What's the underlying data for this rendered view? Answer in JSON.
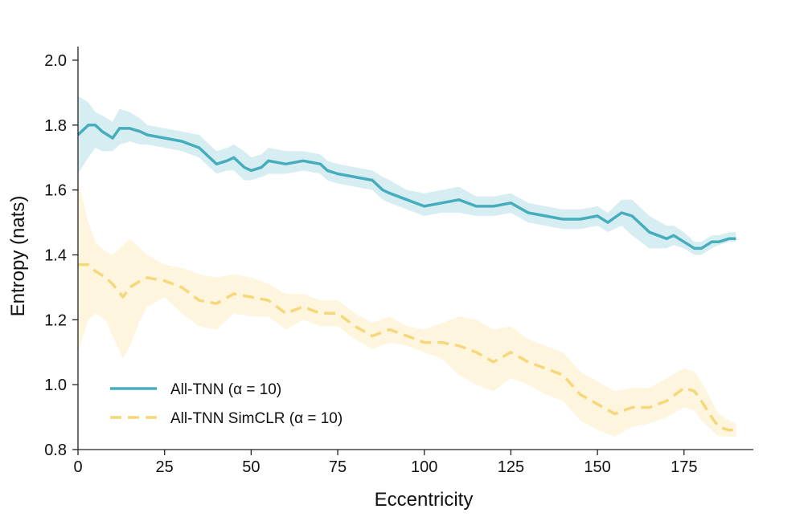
{
  "chart_data": {
    "type": "line",
    "xlabel": "Eccentricity",
    "ylabel": "Entropy (nats)",
    "xlim": [
      0,
      195
    ],
    "ylim": [
      0.8,
      2.05
    ],
    "x_ticks": [
      0,
      25,
      50,
      75,
      100,
      125,
      150,
      175
    ],
    "y_ticks": [
      0.8,
      1.0,
      1.2,
      1.4,
      1.6,
      1.8,
      2.0
    ],
    "x_tick_labels": [
      "0",
      "25",
      "50",
      "75",
      "100",
      "125",
      "150",
      "175"
    ],
    "y_tick_labels": [
      "0.8",
      "1.0",
      "1.2",
      "1.4",
      "1.6",
      "1.8",
      "2.0"
    ],
    "grid": false,
    "legend_position": "lower-left",
    "series": [
      {
        "name": "All-TNN (α = 10)",
        "color": "#45adbd",
        "band_color": "#45adbd",
        "style": "solid",
        "x": [
          0,
          3,
          5,
          7,
          10,
          12,
          15,
          18,
          20,
          25,
          30,
          35,
          40,
          43,
          45,
          48,
          50,
          53,
          55,
          60,
          65,
          70,
          72,
          75,
          80,
          85,
          88,
          90,
          95,
          100,
          105,
          110,
          115,
          120,
          125,
          130,
          135,
          140,
          145,
          150,
          153,
          157,
          160,
          165,
          170,
          172,
          175,
          178,
          180,
          183,
          185,
          188,
          190
        ],
        "y": [
          1.77,
          1.8,
          1.8,
          1.78,
          1.76,
          1.79,
          1.79,
          1.78,
          1.77,
          1.76,
          1.75,
          1.73,
          1.68,
          1.69,
          1.7,
          1.67,
          1.66,
          1.67,
          1.69,
          1.68,
          1.69,
          1.68,
          1.66,
          1.65,
          1.64,
          1.63,
          1.6,
          1.59,
          1.57,
          1.55,
          1.56,
          1.57,
          1.55,
          1.55,
          1.56,
          1.53,
          1.52,
          1.51,
          1.51,
          1.52,
          1.5,
          1.53,
          1.52,
          1.47,
          1.45,
          1.46,
          1.44,
          1.42,
          1.42,
          1.44,
          1.44,
          1.45,
          1.45
        ],
        "lower": [
          1.65,
          1.7,
          1.73,
          1.72,
          1.72,
          1.74,
          1.75,
          1.74,
          1.74,
          1.73,
          1.72,
          1.7,
          1.65,
          1.66,
          1.66,
          1.63,
          1.63,
          1.64,
          1.65,
          1.65,
          1.66,
          1.65,
          1.63,
          1.62,
          1.61,
          1.6,
          1.57,
          1.56,
          1.54,
          1.52,
          1.53,
          1.53,
          1.52,
          1.52,
          1.53,
          1.5,
          1.49,
          1.48,
          1.48,
          1.49,
          1.47,
          1.49,
          1.46,
          1.42,
          1.42,
          1.43,
          1.42,
          1.4,
          1.4,
          1.42,
          1.43,
          1.44,
          1.44
        ],
        "upper": [
          1.89,
          1.87,
          1.84,
          1.83,
          1.81,
          1.85,
          1.84,
          1.82,
          1.8,
          1.79,
          1.78,
          1.77,
          1.72,
          1.73,
          1.74,
          1.72,
          1.7,
          1.71,
          1.73,
          1.72,
          1.72,
          1.71,
          1.69,
          1.68,
          1.67,
          1.66,
          1.64,
          1.63,
          1.6,
          1.59,
          1.6,
          1.61,
          1.58,
          1.58,
          1.59,
          1.56,
          1.55,
          1.54,
          1.54,
          1.55,
          1.53,
          1.57,
          1.57,
          1.52,
          1.49,
          1.49,
          1.47,
          1.44,
          1.44,
          1.46,
          1.46,
          1.47,
          1.47
        ]
      },
      {
        "name": "All-TNN SimCLR (α = 10)",
        "color": "#f5d87a",
        "band_color": "#fce8b8",
        "style": "dashed",
        "x": [
          0,
          3,
          5,
          8,
          10,
          13,
          15,
          18,
          20,
          25,
          30,
          35,
          40,
          45,
          50,
          55,
          60,
          65,
          70,
          75,
          80,
          85,
          90,
          95,
          100,
          105,
          110,
          115,
          120,
          125,
          130,
          135,
          140,
          145,
          150,
          155,
          160,
          165,
          170,
          175,
          178,
          180,
          183,
          185,
          188,
          190
        ],
        "y": [
          1.37,
          1.37,
          1.35,
          1.33,
          1.31,
          1.27,
          1.3,
          1.32,
          1.33,
          1.32,
          1.3,
          1.26,
          1.25,
          1.28,
          1.27,
          1.26,
          1.22,
          1.24,
          1.22,
          1.22,
          1.18,
          1.15,
          1.17,
          1.15,
          1.13,
          1.13,
          1.12,
          1.1,
          1.07,
          1.1,
          1.07,
          1.05,
          1.03,
          0.97,
          0.94,
          0.91,
          0.93,
          0.93,
          0.95,
          0.99,
          0.98,
          0.95,
          0.9,
          0.87,
          0.86,
          0.86
        ],
        "lower": [
          1.1,
          1.2,
          1.22,
          1.2,
          1.15,
          1.08,
          1.12,
          1.2,
          1.24,
          1.27,
          1.22,
          1.18,
          1.17,
          1.22,
          1.21,
          1.21,
          1.17,
          1.2,
          1.18,
          1.18,
          1.14,
          1.11,
          1.13,
          1.12,
          1.1,
          1.08,
          1.03,
          1.0,
          0.98,
          1.02,
          1.0,
          0.97,
          0.95,
          0.89,
          0.86,
          0.84,
          0.87,
          0.88,
          0.9,
          0.93,
          0.92,
          0.89,
          0.86,
          0.84,
          0.84,
          0.84
        ],
        "upper": [
          1.63,
          1.5,
          1.44,
          1.41,
          1.4,
          1.43,
          1.45,
          1.42,
          1.4,
          1.37,
          1.36,
          1.34,
          1.33,
          1.34,
          1.33,
          1.31,
          1.28,
          1.28,
          1.26,
          1.26,
          1.22,
          1.19,
          1.21,
          1.18,
          1.17,
          1.19,
          1.21,
          1.2,
          1.17,
          1.18,
          1.14,
          1.12,
          1.1,
          1.04,
          1.01,
          0.98,
          0.99,
          0.99,
          1.02,
          1.05,
          1.04,
          1.01,
          0.95,
          0.91,
          0.89,
          0.88
        ]
      }
    ]
  }
}
